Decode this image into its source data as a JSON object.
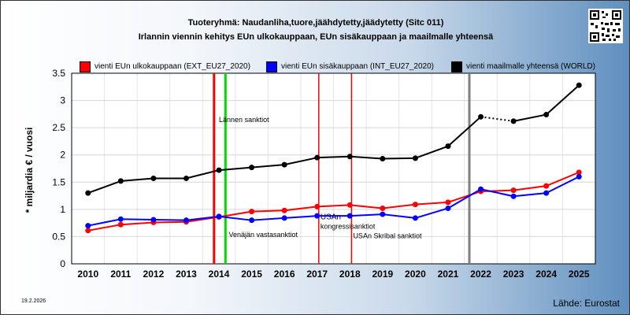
{
  "header": {
    "title": "Tuoteryhmä: Naudanliha,tuore,jäähdytetty,jäädytetty (Sitc 011)",
    "subtitle": "Irlannin viennin kehitys EUn ulkokauppaan, EUn sisäkauppaan ja maailmalle yhteensä"
  },
  "footer": {
    "date": "19.2.2026",
    "source": "Lähde: Eurostat"
  },
  "chart_data": {
    "type": "line",
    "ylabel": "* miljardia € / vuosi",
    "ylim": [
      0,
      3.5
    ],
    "yticks": [
      "0",
      "0.5",
      "1",
      "1.5",
      "2",
      "2.5",
      "3",
      "3.5"
    ],
    "categories": [
      "2010",
      "2011",
      "2012",
      "2013",
      "2014",
      "2015",
      "2016",
      "2017",
      "2018",
      "2019",
      "2020",
      "2021",
      "2022",
      "2023",
      "2024",
      "2025"
    ],
    "grid": true,
    "legend_position": "top",
    "series": [
      {
        "name": "vienti EUn ulkokauppaan (EXT_EU27_2020)",
        "color": "#ff0000",
        "values": [
          0.61,
          0.72,
          0.76,
          0.77,
          0.86,
          0.96,
          0.98,
          1.05,
          1.08,
          1.02,
          1.09,
          1.13,
          1.33,
          1.35,
          1.43,
          1.68
        ]
      },
      {
        "name": "vienti EUn sisäkauppaan (INT_EU27_2020)",
        "color": "#0000ff",
        "values": [
          0.7,
          0.82,
          0.81,
          0.8,
          0.87,
          0.8,
          0.84,
          0.88,
          0.88,
          0.91,
          0.84,
          1.02,
          1.37,
          1.24,
          1.3,
          1.6
        ]
      },
      {
        "name": "vienti maailmalle yhteensä (WORLD)",
        "color": "#000000",
        "values": [
          1.3,
          1.52,
          1.57,
          1.57,
          1.72,
          1.77,
          1.82,
          1.95,
          1.97,
          1.93,
          1.94,
          2.16,
          2.7,
          2.62,
          2.74,
          3.28
        ]
      }
    ],
    "markers": [
      {
        "x": 2013.85,
        "color": "#ff0000",
        "label": ""
      },
      {
        "x": 2014.2,
        "color": "#00dd00",
        "label": ""
      },
      {
        "x": 2017.05,
        "color": "#ff0000",
        "label": ""
      },
      {
        "x": 2018.05,
        "color": "#ff0000",
        "label": ""
      },
      {
        "x": 2021.65,
        "color": "#808080",
        "label": ""
      }
    ],
    "annotations": [
      {
        "text": "Lännen sanktiot",
        "x": 2014.0,
        "y": 2.6
      },
      {
        "text": "Venäjän vastasanktiot",
        "x": 2014.3,
        "y": 0.49
      },
      {
        "text": "USAn",
        "x": 2017.1,
        "y": 0.82
      },
      {
        "text": "kongressisanktiot",
        "x": 2017.1,
        "y": 0.64
      },
      {
        "text": "USAn Skribal sanktiot",
        "x": 2018.1,
        "y": 0.47
      }
    ]
  }
}
